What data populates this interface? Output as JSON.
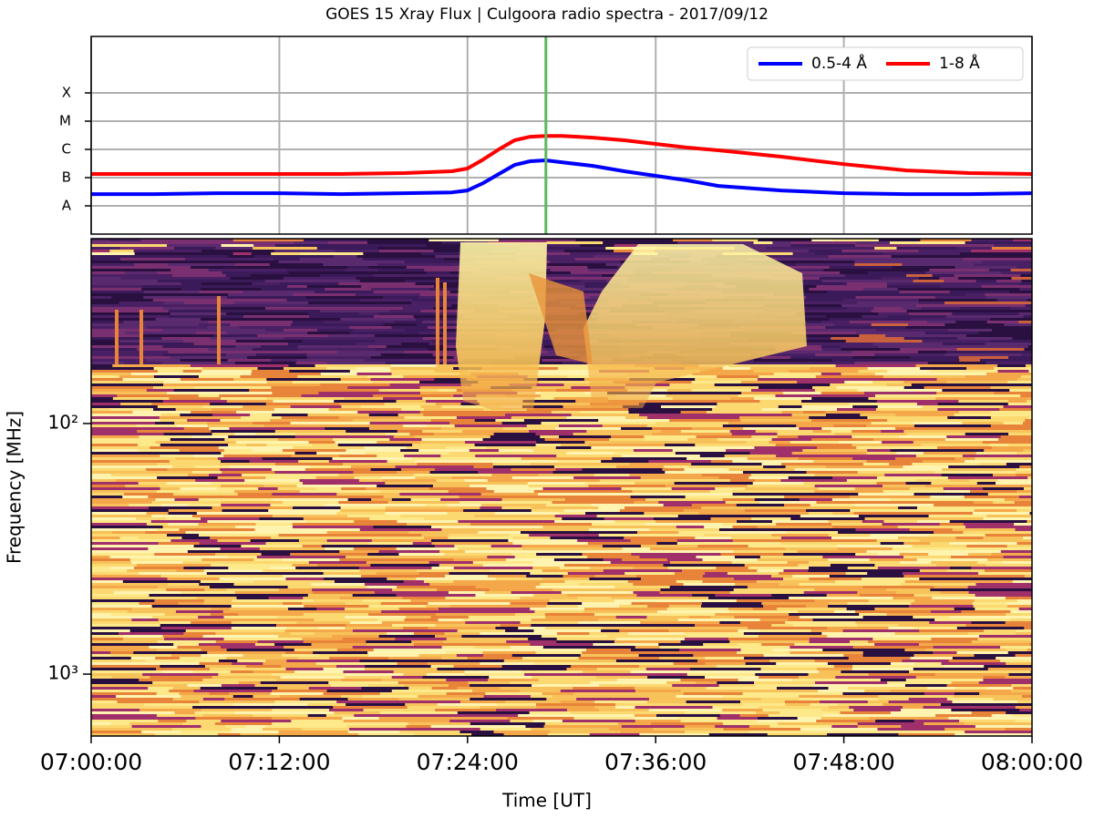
{
  "chart_data": [
    {
      "type": "line",
      "title": "GOES 15 Xray Flux | Culgoora radio spectra - 2017/09/12",
      "x": [
        "07:00:00",
        "07:04:00",
        "07:08:00",
        "07:12:00",
        "07:16:00",
        "07:20:00",
        "07:23:00",
        "07:24:00",
        "07:25:00",
        "07:26:00",
        "07:27:00",
        "07:28:00",
        "07:29:00",
        "07:30:00",
        "07:32:00",
        "07:34:00",
        "07:36:00",
        "07:38:00",
        "07:40:00",
        "07:44:00",
        "07:48:00",
        "07:52:00",
        "07:56:00",
        "08:00:00"
      ],
      "series": [
        {
          "name": "0.5-4 Å",
          "color": "#0000ff",
          "values": [
            2.6e-08,
            2.6e-08,
            2.8e-08,
            2.8e-08,
            2.6e-08,
            2.8e-08,
            3e-08,
            3.5e-08,
            6.4e-08,
            1.35e-07,
            2.8e-07,
            3.8e-07,
            4.1e-07,
            3.5e-07,
            2.6e-07,
            1.68e-07,
            1.16e-07,
            8e-08,
            5.1e-08,
            3.5e-08,
            2.8e-08,
            2.6e-08,
            2.6e-08,
            2.8e-08
          ]
        },
        {
          "name": "1-8 Å",
          "color": "#ff0000",
          "values": [
            1.35e-07,
            1.35e-07,
            1.35e-07,
            1.35e-07,
            1.35e-07,
            1.45e-07,
            1.68e-07,
            2.1e-07,
            4.4e-07,
            1e-06,
            2.1e-06,
            2.8e-06,
            3e-06,
            3e-06,
            2.6e-06,
            2.1e-06,
            1.56e-06,
            1.16e-06,
            9.3e-07,
            5.5e-07,
            3e-07,
            1.8e-07,
            1.45e-07,
            1.35e-07
          ]
        }
      ],
      "ylim": [
        1e-09,
        0.01
      ],
      "yticks": [
        {
          "value": 1e-08,
          "label": "A"
        },
        {
          "value": 1e-07,
          "label": "B"
        },
        {
          "value": 1e-06,
          "label": "C"
        },
        {
          "value": 1e-05,
          "label": "M"
        },
        {
          "value": 0.0001,
          "label": "X"
        }
      ],
      "log_y": true,
      "grid": true,
      "legend": "upper right",
      "marker": {
        "x": "07:29:00",
        "color": "#5cb85c"
      }
    },
    {
      "type": "spectrogram",
      "xlabel": "Time [UT]",
      "ylabel": "Frequency [MHz]",
      "xlim": [
        "07:00:00",
        "08:00:00"
      ],
      "xticks": [
        "07:00:00",
        "07:12:00",
        "07:24:00",
        "07:36:00",
        "07:48:00",
        "08:00:00"
      ],
      "ylim": [
        18.3,
        1766
      ],
      "yticks": [
        {
          "value": 100,
          "label": "10²"
        },
        {
          "value": 1000,
          "label": "10³"
        }
      ],
      "log_y": true,
      "y_inverted": true
    }
  ]
}
